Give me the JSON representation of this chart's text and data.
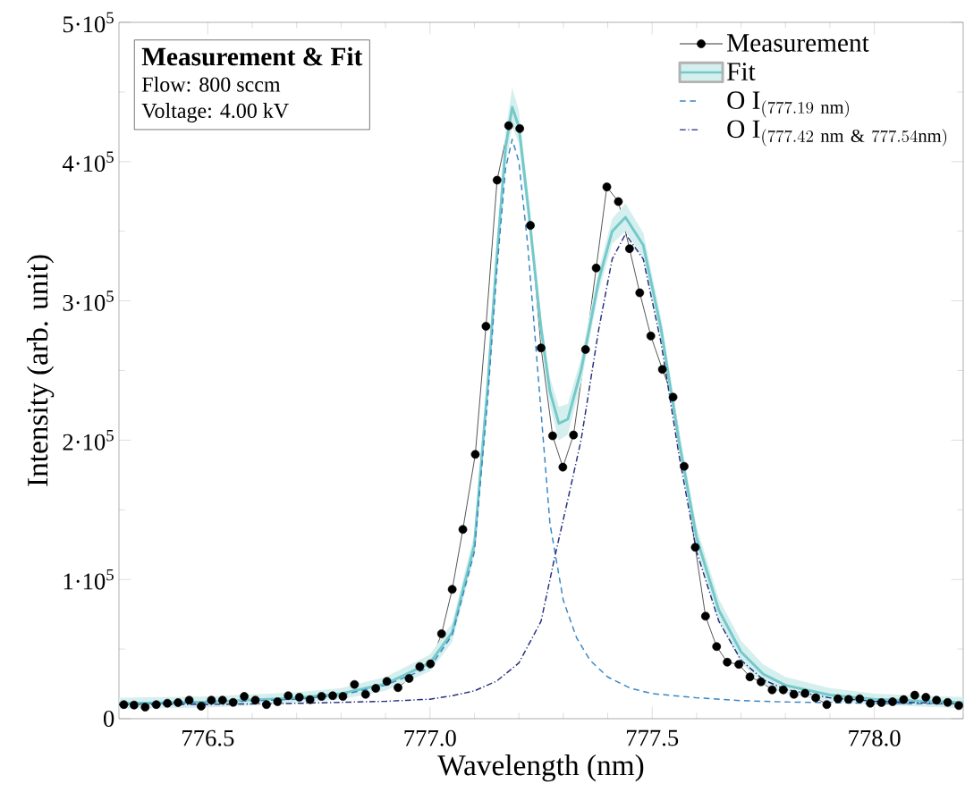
{
  "chart_data": {
    "type": "line",
    "title": "Measurement & Fit",
    "xlabel": "Wavelength (nm)",
    "ylabel": "Intensity (arb. unit)",
    "annotations": [
      "Flow: 800 sccm",
      "Voltage: 4.00 kV"
    ],
    "xlim": [
      776.3,
      778.2
    ],
    "xticks": [
      {
        "value": 776.5,
        "label": "776.5"
      },
      {
        "value": 777.0,
        "label": "777.0"
      },
      {
        "value": 777.5,
        "label": "777.5"
      },
      {
        "value": 778.0,
        "label": "778.0"
      }
    ],
    "ylim": [
      0,
      500000
    ],
    "yticks": [
      0,
      {
        "value": 100000,
        "label": "1·10$^{5}$"
      },
      {
        "value": 200000,
        "label": "2·10$^{5}$"
      },
      {
        "value": 300000,
        "label": "3·10$^{5}$"
      },
      {
        "value": 400000,
        "label": "4·10$^{5}$"
      },
      {
        "value": 500000,
        "label": "5·10$^{5}$"
      }
    ],
    "legend": "top right",
    "series": [
      {
        "name": "Measurement",
        "color": "#000000",
        "marker": "circle",
        "line_style": "solid",
        "x": [
          776.311,
          776.334,
          776.359,
          776.384,
          776.409,
          776.433,
          776.458,
          776.485,
          776.508,
          776.533,
          776.557,
          776.582,
          776.607,
          776.632,
          776.657,
          776.681,
          776.706,
          776.73,
          776.756,
          776.781,
          776.804,
          776.83,
          776.855,
          776.878,
          776.903,
          776.928,
          776.953,
          776.977,
          777.001,
          777.026,
          777.05,
          777.074,
          777.102,
          777.126,
          777.151,
          777.177,
          777.202,
          777.226,
          777.25,
          777.276,
          777.299,
          777.323,
          777.35,
          777.374,
          777.398,
          777.424,
          777.449,
          777.472,
          777.497,
          777.523,
          777.547,
          777.572,
          777.597,
          777.62,
          777.645,
          777.669,
          777.695,
          777.72,
          777.745,
          777.77,
          777.795,
          777.819,
          777.844,
          777.868,
          777.893,
          777.918,
          777.942,
          777.967,
          777.991,
          778.016,
          778.041,
          778.066,
          778.091,
          778.116,
          778.14,
          778.165,
          778.19
        ],
        "values": [
          10100,
          9800,
          8300,
          10100,
          11100,
          11600,
          13300,
          9000,
          13300,
          13300,
          11700,
          16000,
          13300,
          10100,
          12200,
          16500,
          15400,
          13700,
          16000,
          16500,
          16000,
          24600,
          17500,
          21800,
          26800,
          22300,
          28900,
          37400,
          39400,
          61000,
          92900,
          135900,
          189800,
          281800,
          386700,
          425800,
          423700,
          354200,
          266200,
          203100,
          180600,
          203700,
          265100,
          323600,
          381800,
          371300,
          337500,
          305800,
          274800,
          250800,
          230900,
          181200,
          123100,
          73600,
          51800,
          40600,
          39000,
          30000,
          26500,
          20700,
          20700,
          17500,
          18200,
          15000,
          10100,
          14300,
          13900,
          14300,
          11100,
          11600,
          12200,
          13700,
          16900,
          15400,
          13300,
          11700,
          9400
        ]
      },
      {
        "name": "Fit",
        "color": "#74c9c9",
        "marker": "none",
        "line_style": "solid",
        "x": [
          776.3,
          776.5,
          776.7,
          776.8,
          776.9,
          777.0,
          777.05,
          777.1,
          777.13,
          777.15,
          777.17,
          777.185,
          777.2,
          777.22,
          777.25,
          777.27,
          777.29,
          777.31,
          777.34,
          777.38,
          777.41,
          777.44,
          777.48,
          777.52,
          777.56,
          777.6,
          777.65,
          777.7,
          777.75,
          777.8,
          777.9,
          778.0,
          778.2
        ],
        "values": [
          11000,
          12000,
          15000,
          18000,
          25000,
          40000,
          62000,
          125000,
          240000,
          330000,
          410000,
          439000,
          425000,
          370000,
          280000,
          235000,
          212000,
          215000,
          250000,
          315000,
          350000,
          360000,
          340000,
          280000,
          200000,
          130000,
          78000,
          48000,
          32000,
          24000,
          17000,
          14000,
          11500
        ],
        "upper": [
          15000,
          16000,
          19000,
          22000,
          30000,
          46000,
          69000,
          133000,
          249000,
          340000,
          422000,
          453000,
          437000,
          380000,
          289000,
          245000,
          224000,
          226000,
          259000,
          323000,
          359000,
          370000,
          349000,
          288000,
          208000,
          138000,
          86000,
          56000,
          39000,
          30000,
          22000,
          18000,
          15500
        ],
        "lower": [
          7000,
          8000,
          11000,
          14000,
          20000,
          34000,
          55000,
          117000,
          231000,
          320000,
          398000,
          425000,
          413000,
          360000,
          271000,
          225000,
          200000,
          204000,
          241000,
          307000,
          341000,
          350000,
          331000,
          272000,
          192000,
          122000,
          70000,
          40000,
          25000,
          18000,
          12000,
          10000,
          7500
        ]
      },
      {
        "name": "\\mathrm{O\\ I}_{(777.19\\ \\mathrm{nm})}",
        "color": "#3a86c2",
        "marker": "none",
        "line_style": "dashed",
        "x": [
          776.3,
          776.5,
          776.7,
          776.8,
          776.9,
          777.0,
          777.05,
          777.1,
          777.13,
          777.15,
          777.17,
          777.185,
          777.2,
          777.22,
          777.25,
          777.27,
          777.3,
          777.33,
          777.36,
          777.4,
          777.45,
          777.5,
          777.6,
          777.7,
          777.8,
          778.0,
          778.2
        ],
        "values": [
          10500,
          11500,
          14000,
          17000,
          24000,
          37000,
          60000,
          120000,
          230000,
          320000,
          395000,
          416000,
          400000,
          340000,
          220000,
          140000,
          85000,
          58000,
          42000,
          30000,
          22000,
          18000,
          15000,
          13000,
          12000,
          11000,
          10500
        ]
      },
      {
        "name": "\\mathrm{O\\ I}_{(777.42\\ \\mathrm{nm}\\ \\&\\ 777.54\\mathrm{nm})}",
        "color": "#27307f",
        "marker": "none",
        "line_style": "dashdot",
        "x": [
          776.3,
          776.5,
          776.7,
          776.9,
          777.0,
          777.05,
          777.1,
          777.15,
          777.2,
          777.25,
          777.28,
          777.31,
          777.34,
          777.38,
          777.41,
          777.44,
          777.48,
          777.52,
          777.56,
          777.6,
          777.65,
          777.7,
          777.75,
          777.8,
          777.9,
          778.0,
          778.2
        ],
        "values": [
          10000,
          10300,
          11000,
          12500,
          14000,
          16500,
          20000,
          27000,
          40000,
          70000,
          115000,
          157000,
          200000,
          280000,
          330000,
          348000,
          330000,
          270000,
          190000,
          120000,
          70000,
          42000,
          28000,
          21000,
          15000,
          12500,
          10500
        ]
      }
    ]
  }
}
